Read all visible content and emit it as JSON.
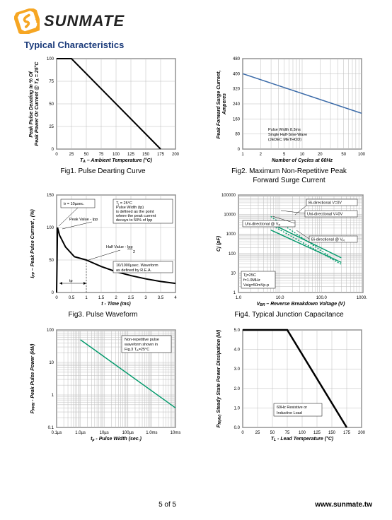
{
  "brand": {
    "name": "SUNMATE",
    "logo_colors": {
      "outer": "#f6a623",
      "inner": "#ffffff",
      "s": "#f6a623"
    }
  },
  "section_title": "Typical Characteristics",
  "footer": {
    "page": "5 of 5",
    "site": "www.sunmate.tw"
  },
  "fig1": {
    "type": "line",
    "caption": "Fig1. Pulse Dearting Curve",
    "xlabel": "T_A – Ambient Temperature (°C)",
    "ylabel": "Peak Pulse Derating In % Of\nPeak Power Or Current @ T_A = 25°C",
    "xlim": [
      0,
      200
    ],
    "ylim": [
      0,
      100
    ],
    "xticks": [
      0,
      25,
      50,
      75,
      100,
      125,
      150,
      175,
      200
    ],
    "yticks": [
      0,
      25,
      50,
      75,
      100
    ],
    "line_color": "#000000",
    "line_width": 2,
    "grid_color": "#bbbbbb",
    "data": [
      [
        0,
        100
      ],
      [
        25,
        100
      ],
      [
        175,
        0
      ]
    ]
  },
  "fig2": {
    "type": "line-loglog-x",
    "caption": "Fig2. Maximum Non-Repetitive Peak\nForward Surge Current",
    "xlabel": "Number of Cycles at 60Hz",
    "ylabel": "Peak Forward Surge Current,\nAmperes",
    "xlim_log": [
      1,
      100
    ],
    "ylim": [
      0,
      480
    ],
    "xticks_log": [
      1,
      2,
      5,
      10,
      20,
      50,
      100
    ],
    "yticks": [
      0,
      80,
      160,
      240,
      320,
      400,
      480
    ],
    "line_color": "#3a6aa8",
    "line_width": 1.5,
    "grid_color": "#bbbbbb",
    "note": "Pulse Width 8.3ms\nSingle Half-Sine-Wave\n(JEDEC METHOD)",
    "data": [
      [
        1,
        400
      ],
      [
        100,
        190
      ]
    ]
  },
  "fig3": {
    "type": "waveform",
    "caption": "Fig3. Pulse Waveform",
    "xlabel": "t - Time (ms)",
    "ylabel": "I_PP – Peak Pulse Current , (%)",
    "xlim": [
      0,
      4.0
    ],
    "ylim": [
      0,
      150
    ],
    "xticks": [
      0,
      0.5,
      1.0,
      1.5,
      2.0,
      2.5,
      3.0,
      3.5,
      4.0
    ],
    "yticks": [
      0,
      50,
      100,
      150
    ],
    "line_color": "#000000",
    "line_width": 2,
    "grid_color": "#bbbbbb",
    "notes": {
      "tr": "tr = 10µsec.",
      "peak": "Peak Value - Ipp",
      "half": "Half Value - Ipp/2",
      "def": "T_j = 25°C\nPulse Width (tp)\nis defined as the point\nwhere the peak current\ndecays to 50% of Ipp",
      "wave": "10/1000µsec. Waveform\nas defined by R.E.A.",
      "tp": "tp"
    },
    "data": [
      [
        0,
        0
      ],
      [
        0.03,
        100
      ],
      [
        0.1,
        88
      ],
      [
        0.3,
        70
      ],
      [
        0.6,
        55
      ],
      [
        1.0,
        50
      ],
      [
        1.5,
        40
      ],
      [
        2.0,
        32
      ],
      [
        2.5,
        26
      ],
      [
        3.0,
        21
      ],
      [
        3.5,
        17
      ],
      [
        4.0,
        14
      ]
    ]
  },
  "fig4": {
    "type": "loglog",
    "caption": "Fig4. Typical Junction Capacitance",
    "xlabel": "V_BR – Reverse Breakdown Voltage (V)",
    "ylabel": "Cj (pF)",
    "xlim_log": [
      1,
      1000
    ],
    "ylim_log": [
      1,
      100000
    ],
    "xticks_log": [
      1,
      10,
      100,
      1000
    ],
    "yticks_log": [
      1,
      10,
      100,
      1000,
      10000,
      100000
    ],
    "grid_color": "#cccccc",
    "series": [
      {
        "label": "Uni-directional @ V_R",
        "color": "#049a6c",
        "style": "dotted",
        "data": [
          [
            6,
            8000
          ],
          [
            200,
            50
          ]
        ]
      },
      {
        "label": "Uni-directional V=0V",
        "color": "#049a6c",
        "style": "solid",
        "data": [
          [
            6,
            3500
          ],
          [
            300,
            60
          ]
        ]
      },
      {
        "label": "Bi-directional @ V_R",
        "color": "#049a6c",
        "style": "dotted",
        "data": [
          [
            6,
            3000
          ],
          [
            300,
            28
          ]
        ]
      },
      {
        "label": "Bi-directional V=0V",
        "color": "#049a6c",
        "style": "solid",
        "data": [
          [
            6,
            1600
          ],
          [
            300,
            35
          ]
        ]
      }
    ],
    "note": "Tj=25C\nf=1.0MHz\nVsig=50mVp-p"
  },
  "fig5": {
    "type": "loglog",
    "caption": "",
    "xlabel": "t_p - Pulse Width (sec.)",
    "ylabel": "P_PPM - Peak Pulse Power (kW)",
    "xlim_log": [
      1e-07,
      0.01
    ],
    "ylim_log": [
      0.1,
      100
    ],
    "xticks_labels": [
      "0.1µs",
      "1.0µs",
      "10µs",
      "100µs",
      "1.0ms",
      "10ms"
    ],
    "yticks_log": [
      0.1,
      1,
      10,
      100
    ],
    "line_color": "#049a6c",
    "line_width": 1.5,
    "grid_color": "#cccccc",
    "note": "Non-repetitive pulse\nwaveform shown in\nFig.3 T_A=25°C",
    "data": [
      [
        1e-06,
        50
      ],
      [
        0.01,
        0.4
      ]
    ]
  },
  "fig6": {
    "type": "line",
    "caption": "",
    "xlabel": "T_L - Lead Temperature (°C)",
    "ylabel": "P_M(AV) Steady State Power Dissipation (W)",
    "xlim": [
      0,
      200
    ],
    "ylim": [
      0,
      5.0
    ],
    "xticks": [
      0,
      25,
      50,
      75,
      100,
      125,
      150,
      175,
      200
    ],
    "yticks": [
      0,
      1.0,
      2.0,
      3.0,
      4.0,
      5.0
    ],
    "line_color": "#000000",
    "line_width": 2.5,
    "grid_color": "#bbbbbb",
    "note": "60Hz Resistive or\nInductive Load",
    "data": [
      [
        0,
        5.0
      ],
      [
        75,
        5.0
      ],
      [
        175,
        0
      ]
    ]
  }
}
